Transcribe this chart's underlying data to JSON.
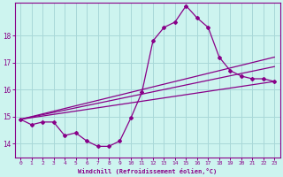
{
  "xlabel": "Windchill (Refroidissement éolien,°C)",
  "background_color": "#cdf4ef",
  "grid_color": "#a8d8d8",
  "line_color": "#880088",
  "xlim": [
    -0.5,
    23.5
  ],
  "ylim": [
    13.5,
    19.2
  ],
  "yticks": [
    14,
    15,
    16,
    17,
    18
  ],
  "xticks": [
    0,
    1,
    2,
    3,
    4,
    5,
    6,
    7,
    8,
    9,
    10,
    11,
    12,
    13,
    14,
    15,
    16,
    17,
    18,
    19,
    20,
    21,
    22,
    23
  ],
  "curve_x": [
    0,
    1,
    2,
    3,
    4,
    5,
    6,
    7,
    8,
    9,
    10,
    11,
    12,
    13,
    14,
    15,
    16,
    17,
    18,
    19,
    20,
    21,
    22,
    23
  ],
  "curve_y": [
    14.9,
    14.7,
    14.8,
    14.8,
    14.3,
    14.4,
    14.1,
    13.9,
    13.9,
    14.1,
    14.95,
    15.9,
    17.8,
    18.3,
    18.5,
    19.1,
    18.65,
    18.3,
    17.2,
    16.7,
    16.5,
    16.4,
    16.4,
    16.3
  ],
  "line1_x": [
    0,
    23
  ],
  "line1_y": [
    14.9,
    16.3
  ],
  "line2_x": [
    0,
    23
  ],
  "line2_y": [
    14.9,
    16.85
  ],
  "line3_x": [
    0,
    23
  ],
  "line3_y": [
    14.9,
    17.2
  ]
}
